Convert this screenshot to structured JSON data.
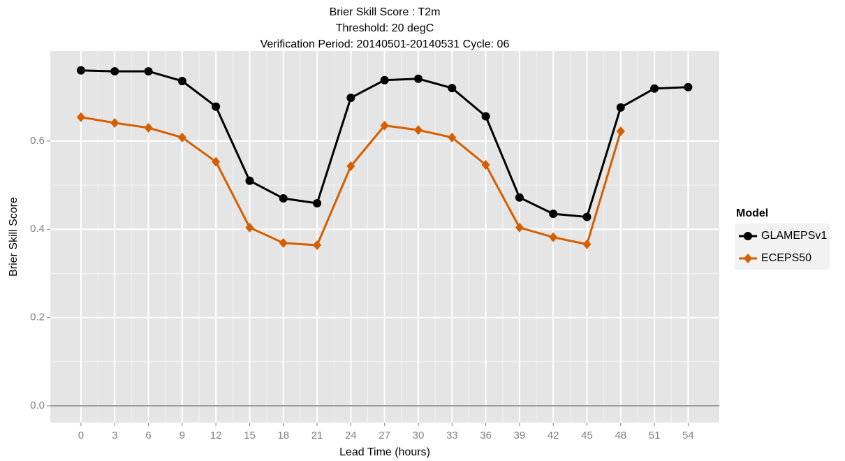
{
  "chart_data": {
    "type": "line",
    "title": "Brier Skill Score : T2m",
    "subtitle": [
      "Threshold: 20 degC",
      "Verification Period: 20140501-20140531 Cycle: 06"
    ],
    "x_label": "Lead Time (hours)",
    "y_label": "Brier Skill Score",
    "legend_title": "Model",
    "legend": "right",
    "grid": true,
    "hline": 0,
    "x": [
      0,
      3,
      6,
      9,
      12,
      15,
      18,
      21,
      24,
      27,
      30,
      33,
      36,
      39,
      42,
      45,
      48,
      51,
      54
    ],
    "series": [
      {
        "name": "GLAMEPSv1",
        "color": "#000000",
        "marker": "circle",
        "values": [
          0.76,
          0.758,
          0.758,
          0.736,
          0.678,
          0.51,
          0.47,
          0.459,
          0.698,
          0.738,
          0.741,
          0.72,
          0.656,
          0.472,
          0.435,
          0.428,
          0.676,
          0.719,
          0.722
        ]
      },
      {
        "name": "ECEPS50",
        "color": "#d55e00",
        "marker": "diamond",
        "values": [
          0.654,
          0.641,
          0.63,
          0.608,
          0.553,
          0.404,
          0.369,
          0.364,
          0.543,
          0.635,
          0.625,
          0.608,
          0.546,
          0.404,
          0.382,
          0.366,
          0.622,
          null,
          null
        ]
      }
    ],
    "xlim": [
      -2.73,
      56.77
    ],
    "xticks": [
      0,
      3,
      6,
      9,
      12,
      15,
      18,
      21,
      24,
      27,
      30,
      33,
      36,
      39,
      42,
      45,
      48,
      51,
      54
    ],
    "ylim": [
      -0.038,
      0.804
    ],
    "yticks": [
      {
        "value": 0,
        "label": "0.0"
      },
      0.2,
      0.4,
      0.6
    ]
  }
}
